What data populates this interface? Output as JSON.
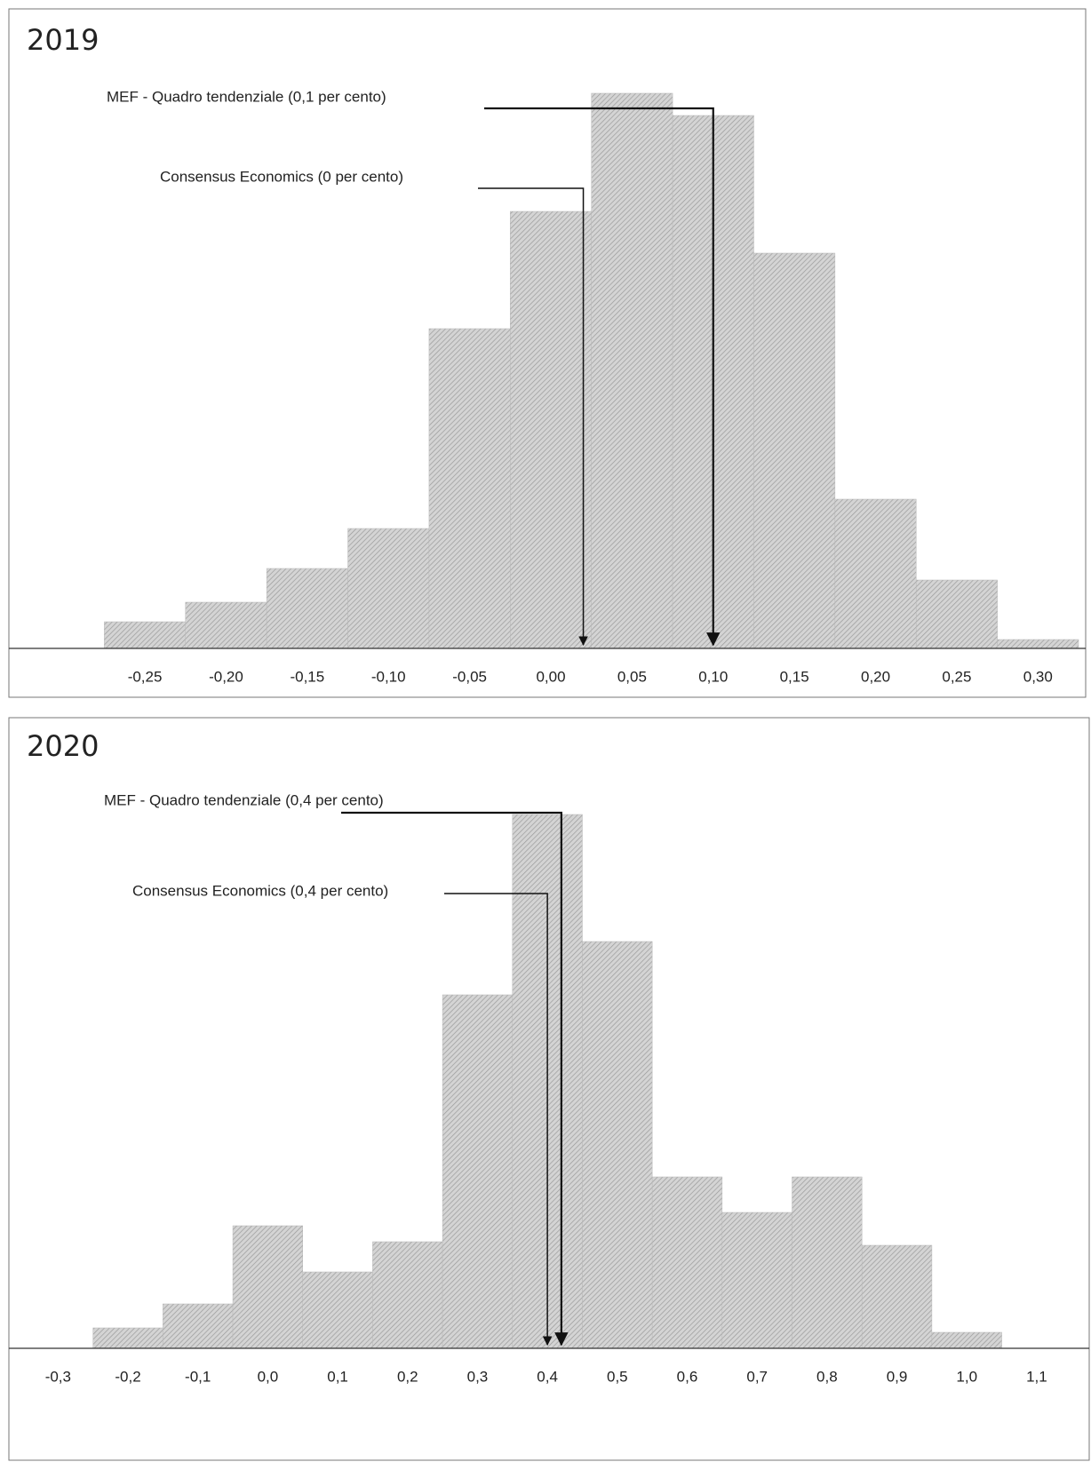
{
  "chart_data": [
    {
      "type": "histogram",
      "title": "2019",
      "bins": [
        -0.275,
        -0.225,
        -0.175,
        -0.125,
        -0.075,
        -0.025,
        0.025,
        0.075,
        0.125,
        0.175,
        0.225,
        0.275,
        0.325
      ],
      "values": [
        3,
        5.2,
        9,
        13.5,
        36,
        49.2,
        62.5,
        60,
        44.5,
        16.8,
        7.7,
        1
      ],
      "color": "#b8b8b8",
      "xlim": [
        -0.325,
        0.325
      ],
      "ylim": [
        0,
        65
      ],
      "xticks": [
        {
          "value": -0.25,
          "label": "-0,25"
        },
        {
          "value": -0.2,
          "label": "-0,20"
        },
        {
          "value": -0.15,
          "label": "-0,15"
        },
        {
          "value": -0.1,
          "label": "-0,10"
        },
        {
          "value": -0.05,
          "label": "-0,05"
        },
        {
          "value": 0,
          "label": "0,00"
        },
        {
          "value": 0.05,
          "label": "0,05"
        },
        {
          "value": 0.1,
          "label": "0,10"
        },
        {
          "value": 0.15,
          "label": "0,15"
        },
        {
          "value": 0.2,
          "label": "0,20"
        },
        {
          "value": 0.25,
          "label": "0,25"
        },
        {
          "value": 0.3,
          "label": "0,30"
        }
      ],
      "annotations": [
        {
          "text": "MEF - Quadro tendenziale (0,1 per cento)",
          "x": 0.1
        },
        {
          "text": "Consensus Economics (0 per cento)",
          "x": 0.02
        }
      ]
    },
    {
      "type": "histogram",
      "title": "2020",
      "bins": [
        -0.25,
        -0.15,
        -0.05,
        0.05,
        0.15,
        0.25,
        0.35,
        0.45,
        0.55,
        0.65,
        0.75,
        0.85,
        0.95,
        1.05
      ],
      "values": [
        2.3,
        5,
        13.8,
        8.6,
        12,
        39.8,
        60.1,
        45.8,
        19.3,
        15.3,
        19.3,
        11.6,
        1.8
      ],
      "color": "#b8b8b8",
      "xlim": [
        -0.35,
        1.17
      ],
      "ylim": [
        0,
        65
      ],
      "xticks": [
        {
          "value": -0.3,
          "label": "-0,3"
        },
        {
          "value": -0.2,
          "label": "-0,2"
        },
        {
          "value": -0.1,
          "label": "-0,1"
        },
        {
          "value": 0,
          "label": "0,0"
        },
        {
          "value": 0.1,
          "label": "0,1"
        },
        {
          "value": 0.2,
          "label": "0,2"
        },
        {
          "value": 0.3,
          "label": "0,3"
        },
        {
          "value": 0.4,
          "label": "0,4"
        },
        {
          "value": 0.5,
          "label": "0,5"
        },
        {
          "value": 0.6,
          "label": "0,6"
        },
        {
          "value": 0.7,
          "label": "0,7"
        },
        {
          "value": 0.8,
          "label": "0,8"
        },
        {
          "value": 0.9,
          "label": "0,9"
        },
        {
          "value": 1,
          "label": "1,0"
        },
        {
          "value": 1.1,
          "label": "1,1"
        }
      ],
      "annotations": [
        {
          "text": "MEF - Quadro tendenziale (0,4 per cento)",
          "x": 0.42
        },
        {
          "text": "Consensus Economics (0,4 per cento)",
          "x": 0.4
        }
      ]
    }
  ]
}
